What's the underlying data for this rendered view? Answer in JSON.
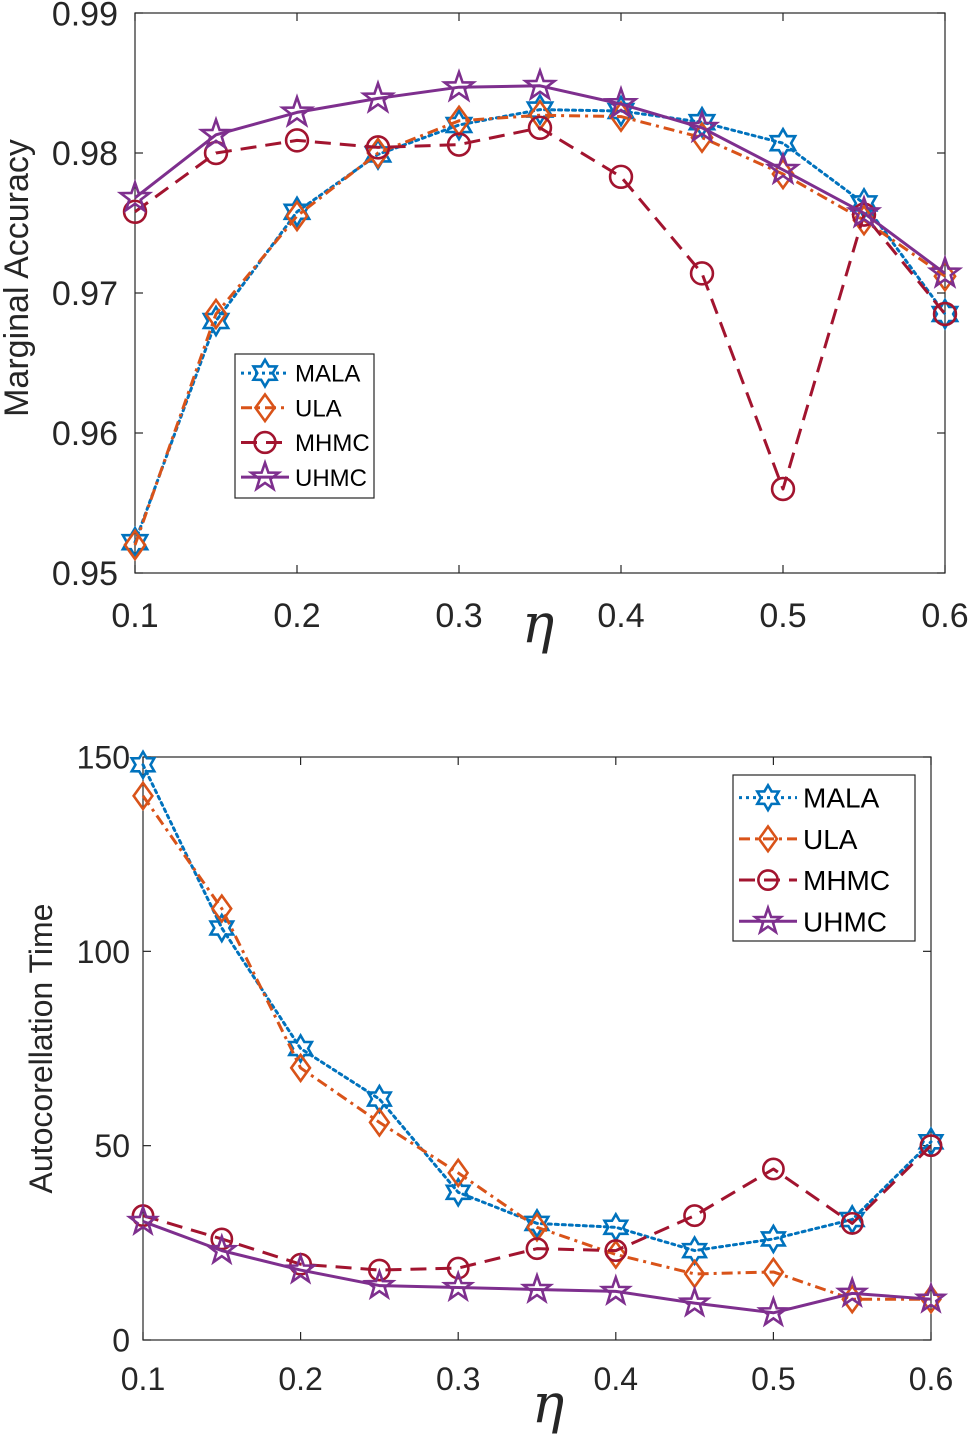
{
  "chart_data": [
    {
      "type": "line",
      "xlabel": "η",
      "ylabel": "Marginal Accuracy",
      "xlim": [
        0.1,
        0.6
      ],
      "ylim": [
        0.95,
        0.99
      ],
      "xticks": [
        "0.1",
        "0.2",
        "0.3",
        "0.4",
        "0.5",
        "0.6"
      ],
      "yticks": [
        "0.95",
        "0.96",
        "0.97",
        "0.98",
        "0.99"
      ],
      "legend_position": "middle-left",
      "x": [
        0.1,
        0.15,
        0.2,
        0.25,
        0.3,
        0.35,
        0.4,
        0.45,
        0.5,
        0.55,
        0.6
      ],
      "series": [
        {
          "name": "MALA",
          "color": "#0072BD",
          "line": "dotted",
          "marker": "hexagram",
          "values": [
            0.9522,
            0.968,
            0.9758,
            0.9799,
            0.982,
            0.9831,
            0.983,
            0.9822,
            0.9807,
            0.9764,
            0.9685
          ]
        },
        {
          "name": "ULA",
          "color": "#D95319",
          "line": "dashdot",
          "marker": "diamond",
          "values": [
            0.952,
            0.9685,
            0.9755,
            0.98,
            0.9823,
            0.9827,
            0.9826,
            0.9811,
            0.9785,
            0.9752,
            0.9712
          ]
        },
        {
          "name": "MHMC",
          "color": "#A2142F",
          "line": "dashed",
          "marker": "circle",
          "values": [
            0.9758,
            0.98,
            0.9809,
            0.9804,
            0.9806,
            0.9818,
            0.9783,
            0.9714,
            0.956,
            0.9756,
            0.9685
          ]
        },
        {
          "name": "UHMC",
          "color": "#7E2F8E",
          "line": "solid",
          "marker": "pentagram",
          "values": [
            0.9768,
            0.9813,
            0.9829,
            0.9839,
            0.9847,
            0.9848,
            0.9835,
            0.9818,
            0.9788,
            0.9757,
            0.9714
          ]
        }
      ]
    },
    {
      "type": "line",
      "xlabel": "η",
      "ylabel": "Autocorellation Time",
      "xlim": [
        0.1,
        0.6
      ],
      "ylim": [
        0,
        150
      ],
      "xticks": [
        "0.1",
        "0.2",
        "0.3",
        "0.4",
        "0.5",
        "0.6"
      ],
      "yticks": [
        "0",
        "50",
        "100",
        "150"
      ],
      "legend_position": "top-right",
      "x": [
        0.1,
        0.15,
        0.2,
        0.25,
        0.3,
        0.35,
        0.4,
        0.45,
        0.5,
        0.55,
        0.6
      ],
      "series": [
        {
          "name": "MALA",
          "color": "#0072BD",
          "line": "dotted",
          "marker": "hexagram",
          "values": [
            148,
            106,
            75,
            62,
            38,
            30,
            29,
            23,
            26,
            31,
            51
          ]
        },
        {
          "name": "ULA",
          "color": "#D95319",
          "line": "dashdot",
          "marker": "diamond",
          "values": [
            140,
            111,
            70,
            56,
            43,
            29,
            22,
            17,
            17.5,
            10.5,
            10.5
          ]
        },
        {
          "name": "MHMC",
          "color": "#A2142F",
          "line": "dashed",
          "marker": "circle",
          "values": [
            32,
            26,
            19.5,
            18,
            18.5,
            23.5,
            23,
            32,
            44,
            30,
            50
          ]
        },
        {
          "name": "UHMC",
          "color": "#7E2F8E",
          "line": "solid",
          "marker": "pentagram",
          "values": [
            30.5,
            23,
            18,
            14,
            13.5,
            13,
            12.5,
            9.5,
            7,
            12,
            10.5
          ]
        }
      ]
    }
  ]
}
